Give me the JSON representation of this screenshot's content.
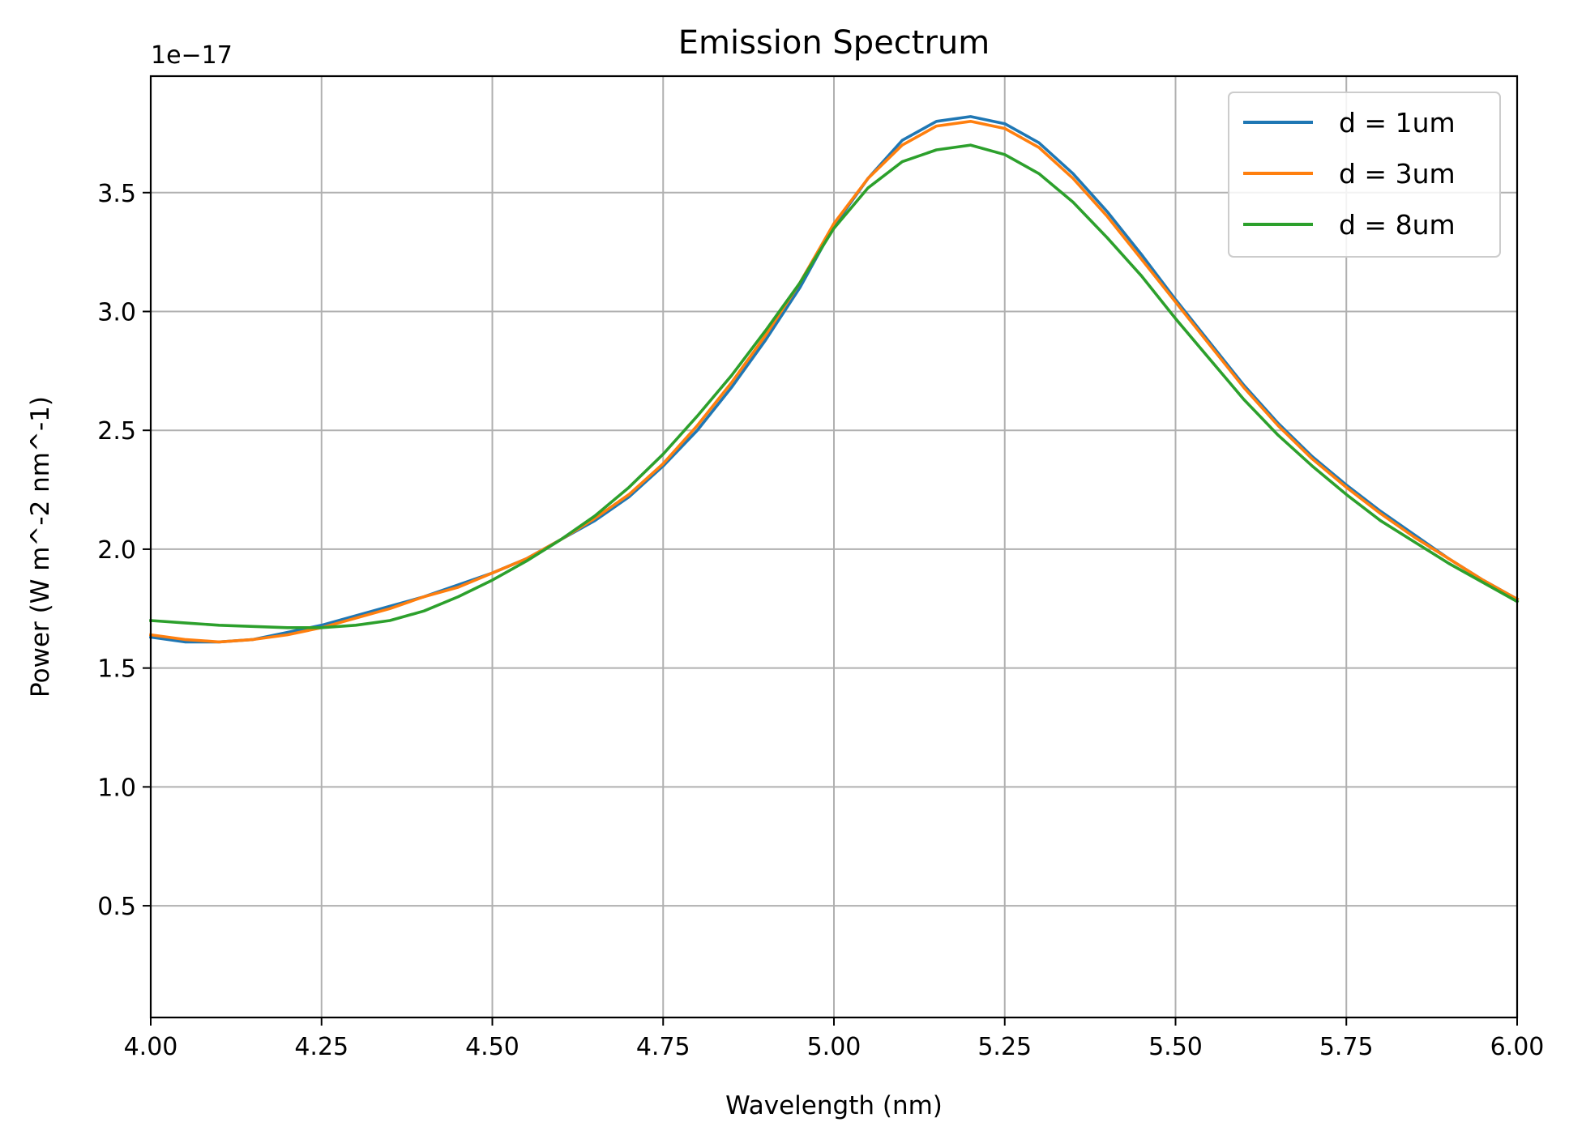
{
  "chart_data": {
    "type": "line",
    "title": "Emission Spectrum",
    "xlabel": "Wavelength (nm)",
    "ylabel": "Power (W m^-2 nm^-1)",
    "y_offset_label": "1e−17",
    "xlim": [
      4.0,
      6.0
    ],
    "ylim": [
      0.03,
      3.99
    ],
    "xticks": [
      "4.00",
      "4.25",
      "4.50",
      "4.75",
      "5.00",
      "5.25",
      "5.50",
      "5.75",
      "6.00"
    ],
    "xtick_values": [
      4.0,
      4.25,
      4.5,
      4.75,
      5.0,
      5.25,
      5.5,
      5.75,
      6.0
    ],
    "yticks": [
      "0.5",
      "1.0",
      "1.5",
      "2.0",
      "2.5",
      "3.0",
      "3.5"
    ],
    "ytick_values": [
      0.5,
      1.0,
      1.5,
      2.0,
      2.5,
      3.0,
      3.5
    ],
    "grid": true,
    "legend_position": "top-right",
    "x": [
      4.0,
      4.05,
      4.1,
      4.15,
      4.2,
      4.25,
      4.3,
      4.35,
      4.4,
      4.45,
      4.5,
      4.55,
      4.6,
      4.65,
      4.7,
      4.75,
      4.8,
      4.85,
      4.9,
      4.95,
      5.0,
      5.05,
      5.1,
      5.15,
      5.2,
      5.25,
      5.3,
      5.35,
      5.4,
      5.45,
      5.5,
      5.55,
      5.6,
      5.65,
      5.7,
      5.75,
      5.8,
      5.85,
      5.9,
      5.95,
      6.0
    ],
    "series": [
      {
        "name": "d = 1um",
        "color": "#1f77b4",
        "values": [
          1.63,
          1.61,
          1.61,
          1.62,
          1.65,
          1.68,
          1.72,
          1.76,
          1.8,
          1.85,
          1.9,
          1.96,
          2.04,
          2.12,
          2.22,
          2.35,
          2.5,
          2.68,
          2.88,
          3.1,
          3.36,
          3.56,
          3.72,
          3.8,
          3.82,
          3.79,
          3.71,
          3.58,
          3.42,
          3.24,
          3.05,
          2.87,
          2.69,
          2.53,
          2.39,
          2.27,
          2.16,
          2.06,
          1.96,
          1.87,
          1.79
        ]
      },
      {
        "name": "d = 3um",
        "color": "#ff7f0e",
        "values": [
          1.64,
          1.62,
          1.61,
          1.62,
          1.64,
          1.67,
          1.71,
          1.75,
          1.8,
          1.84,
          1.9,
          1.96,
          2.04,
          2.13,
          2.23,
          2.36,
          2.52,
          2.7,
          2.9,
          3.12,
          3.37,
          3.56,
          3.7,
          3.78,
          3.8,
          3.77,
          3.69,
          3.56,
          3.4,
          3.22,
          3.04,
          2.86,
          2.68,
          2.52,
          2.38,
          2.26,
          2.15,
          2.05,
          1.96,
          1.87,
          1.79
        ]
      },
      {
        "name": "d = 8um",
        "color": "#2ca02c",
        "values": [
          1.7,
          1.69,
          1.68,
          1.675,
          1.67,
          1.67,
          1.68,
          1.7,
          1.74,
          1.8,
          1.87,
          1.95,
          2.04,
          2.14,
          2.26,
          2.4,
          2.56,
          2.73,
          2.92,
          3.12,
          3.35,
          3.52,
          3.63,
          3.68,
          3.7,
          3.66,
          3.58,
          3.46,
          3.31,
          3.15,
          2.97,
          2.8,
          2.63,
          2.48,
          2.35,
          2.23,
          2.12,
          2.03,
          1.94,
          1.86,
          1.78
        ]
      }
    ]
  }
}
